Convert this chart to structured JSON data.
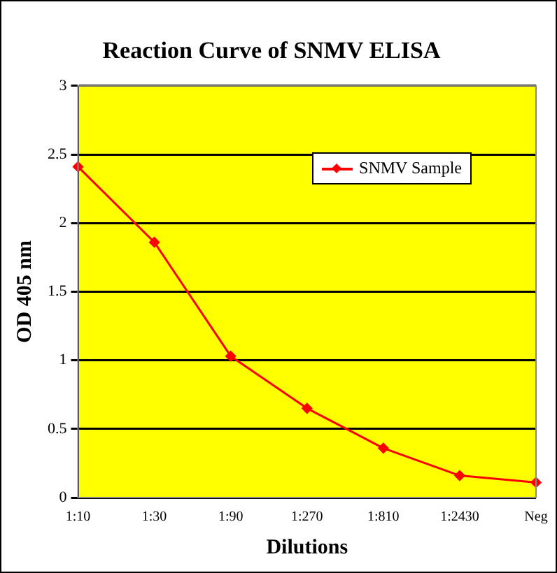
{
  "chart_data": {
    "type": "line",
    "title": "Reaction Curve of SNMV ELISA",
    "xlabel": "Dilutions",
    "ylabel": "OD 405 nm",
    "categories": [
      "1:10",
      "1:30",
      "1:90",
      "1:270",
      "1:810",
      "1:2430",
      "Neg"
    ],
    "series": [
      {
        "name": "SNMV Sample",
        "color": "#ff0000",
        "values": [
          2.41,
          1.86,
          1.03,
          0.65,
          0.36,
          0.16,
          0.11
        ]
      }
    ],
    "ylim": [
      0,
      3
    ],
    "yticks": [
      0,
      0.5,
      1,
      1.5,
      2,
      2.5,
      3
    ],
    "grid": "y",
    "legend": "top right",
    "marker": "diamond",
    "line_style": "solid"
  }
}
